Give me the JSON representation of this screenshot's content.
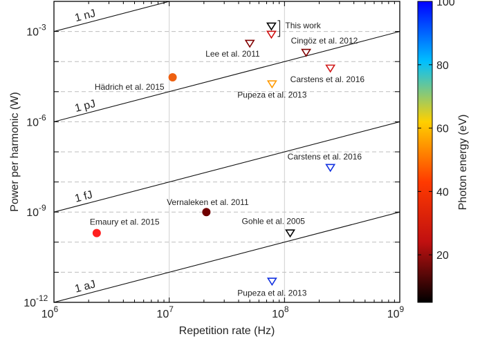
{
  "chart_data": {
    "type": "scatter",
    "title": "",
    "xlabel": "Repetition rate (Hz)",
    "ylabel": "Power per harmonic (W)",
    "xscale": "log",
    "yscale": "log",
    "xlim": [
      1000000,
      1000000000
    ],
    "ylim": [
      1e-12,
      0.01
    ],
    "x_ticks": [
      {
        "value": 1000000,
        "base": "10",
        "exp": "6"
      },
      {
        "value": 10000000,
        "base": "10",
        "exp": "7"
      },
      {
        "value": 100000000,
        "base": "10",
        "exp": "8"
      },
      {
        "value": 1000000000,
        "base": "10",
        "exp": "9"
      }
    ],
    "y_ticks": [
      {
        "value": 0.001,
        "base": "10",
        "exp": "-3"
      },
      {
        "value": 1e-06,
        "base": "10",
        "exp": "-6"
      },
      {
        "value": 1e-09,
        "base": "10",
        "exp": "-9"
      },
      {
        "value": 1e-12,
        "base": "10",
        "exp": "-12"
      }
    ],
    "grid": {
      "x_major": true,
      "y_dashed": true
    },
    "energy_lines": [
      {
        "label": "1 nJ",
        "energy": 1e-09
      },
      {
        "label": "1 pJ",
        "energy": 1e-12
      },
      {
        "label": "1 fJ",
        "energy": 1e-15
      },
      {
        "label": "1 aJ",
        "energy": 1e-18
      }
    ],
    "colorbar": {
      "label": "Photon energy (eV)",
      "range": [
        5,
        100
      ],
      "ticks": [
        20,
        40,
        60,
        80,
        100
      ],
      "colormap": [
        "#000000",
        "#c01010",
        "#ff3a00",
        "#ffd000",
        "#00c0ff",
        "#0000ff"
      ]
    },
    "series": [
      {
        "label": "Hädrich et al. 2015",
        "x": 10700000,
        "y": 3e-05,
        "marker": "circle",
        "color": "#ee6010",
        "photon_energy": 27
      },
      {
        "label": "Vernaleken et al. 2011",
        "x": 21000000,
        "y": 1e-09,
        "marker": "circle",
        "color": "#700000",
        "photon_energy": 13
      },
      {
        "label": "Emaury et al. 2015",
        "x": 2350000,
        "y": 2e-10,
        "marker": "circle",
        "color": "#ff2020",
        "photon_energy": 22
      },
      {
        "label": "This work",
        "x": 77000000,
        "y": 0.0015,
        "marker": "triangle-down",
        "color": "#000000",
        "photon_energy": 10
      },
      {
        "label": "",
        "x": 77000000,
        "y": 0.0008,
        "marker": "triangle-down",
        "color": "#cc1010",
        "photon_energy": 20
      },
      {
        "label": "Lee et al. 2011",
        "x": 50000000,
        "y": 0.0004,
        "marker": "triangle-down",
        "color": "#800000",
        "photon_energy": 15
      },
      {
        "label": "Cingöz et al. 2012",
        "x": 154000000,
        "y": 0.0002,
        "marker": "triangle-down",
        "color": "#800000",
        "photon_energy": 14
      },
      {
        "label": "Carstens et al. 2016",
        "x": 250000000,
        "y": 6e-05,
        "marker": "triangle-down",
        "color": "#d01818",
        "photon_energy": 19
      },
      {
        "label": "Pupeza et al. 2013",
        "x": 78000000,
        "y": 1.8e-05,
        "marker": "triangle-down",
        "color": "#ff9900",
        "photon_energy": 33
      },
      {
        "label": "Carstens et al. 2016",
        "x": 250000000,
        "y": 3e-08,
        "marker": "triangle-down",
        "color": "#1030e0",
        "photon_energy": 95
      },
      {
        "label": "Gohle et al. 2005",
        "x": 112000000,
        "y": 2e-10,
        "marker": "triangle-down",
        "color": "#000000",
        "photon_energy": 10
      },
      {
        "label": "Pupeza et al. 2013",
        "x": 78000000,
        "y": 5e-12,
        "marker": "triangle-down",
        "color": "#1030e0",
        "photon_energy": 95
      }
    ]
  }
}
